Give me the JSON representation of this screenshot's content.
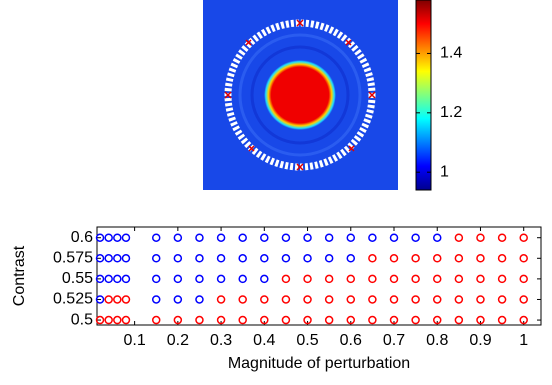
{
  "chart_data": [
    {
      "type": "heatmap",
      "colorbar_lim": [
        0.94,
        1.58
      ],
      "colorbar_ticks": [
        1,
        1.2,
        1.4
      ]
    },
    {
      "type": "scatter",
      "xlabel": "Magnitude of perturbation",
      "ylabel": "Contrast",
      "xlim": [
        0.013,
        1.04
      ],
      "ylim": [
        0.494,
        0.613
      ],
      "xticks": [
        0.1,
        0.2,
        0.3,
        0.4,
        0.5,
        0.6,
        0.7,
        0.8,
        0.9,
        1
      ],
      "yticks": [
        0.5,
        0.525,
        0.55,
        0.575,
        0.6
      ],
      "series": [
        {
          "color": "#0000ff",
          "x": [
            0.02,
            0.04,
            0.06,
            0.08,
            0.15,
            0.2,
            0.25,
            0.3,
            0.35,
            0.4,
            0.45,
            0.5,
            0.55,
            0.6,
            0.65,
            0.7,
            0.75,
            0.8,
            0.02,
            0.04,
            0.06,
            0.08,
            0.15,
            0.2,
            0.25,
            0.3,
            0.35,
            0.4,
            0.45,
            0.5,
            0.55,
            0.6,
            0.02,
            0.04,
            0.06,
            0.08,
            0.15,
            0.2,
            0.25,
            0.3,
            0.35,
            0.4,
            0.02,
            0.15,
            0.2,
            0.25
          ],
          "y": [
            0.6,
            0.6,
            0.6,
            0.6,
            0.6,
            0.6,
            0.6,
            0.6,
            0.6,
            0.6,
            0.6,
            0.6,
            0.6,
            0.6,
            0.6,
            0.6,
            0.6,
            0.6,
            0.575,
            0.575,
            0.575,
            0.575,
            0.575,
            0.575,
            0.575,
            0.575,
            0.575,
            0.575,
            0.575,
            0.575,
            0.575,
            0.575,
            0.55,
            0.55,
            0.55,
            0.55,
            0.55,
            0.55,
            0.55,
            0.55,
            0.55,
            0.55,
            0.525,
            0.525,
            0.525,
            0.525
          ]
        },
        {
          "color": "#ff0000",
          "x": [
            0.85,
            0.9,
            0.95,
            1,
            0.65,
            0.7,
            0.75,
            0.8,
            0.85,
            0.9,
            0.95,
            1,
            0.45,
            0.5,
            0.55,
            0.6,
            0.65,
            0.7,
            0.75,
            0.8,
            0.85,
            0.9,
            0.95,
            1,
            0.04,
            0.06,
            0.08,
            0.3,
            0.35,
            0.4,
            0.45,
            0.5,
            0.55,
            0.6,
            0.65,
            0.7,
            0.75,
            0.8,
            0.85,
            0.9,
            0.95,
            1,
            0.02,
            0.04,
            0.06,
            0.08,
            0.15,
            0.2,
            0.25,
            0.3,
            0.35,
            0.4,
            0.45,
            0.5,
            0.55,
            0.6,
            0.65,
            0.7,
            0.75,
            0.8,
            0.85,
            0.9,
            0.95,
            1
          ],
          "y": [
            0.6,
            0.6,
            0.6,
            0.6,
            0.575,
            0.575,
            0.575,
            0.575,
            0.575,
            0.575,
            0.575,
            0.575,
            0.55,
            0.55,
            0.55,
            0.55,
            0.55,
            0.55,
            0.55,
            0.55,
            0.55,
            0.55,
            0.55,
            0.55,
            0.525,
            0.525,
            0.525,
            0.525,
            0.525,
            0.525,
            0.525,
            0.525,
            0.525,
            0.525,
            0.525,
            0.525,
            0.525,
            0.525,
            0.525,
            0.525,
            0.525,
            0.525,
            0.5,
            0.5,
            0.5,
            0.5,
            0.5,
            0.5,
            0.5,
            0.5,
            0.5,
            0.5,
            0.5,
            0.5,
            0.5,
            0.5,
            0.5,
            0.5,
            0.5,
            0.5,
            0.5,
            0.5,
            0.5,
            0.5
          ]
        }
      ]
    }
  ]
}
